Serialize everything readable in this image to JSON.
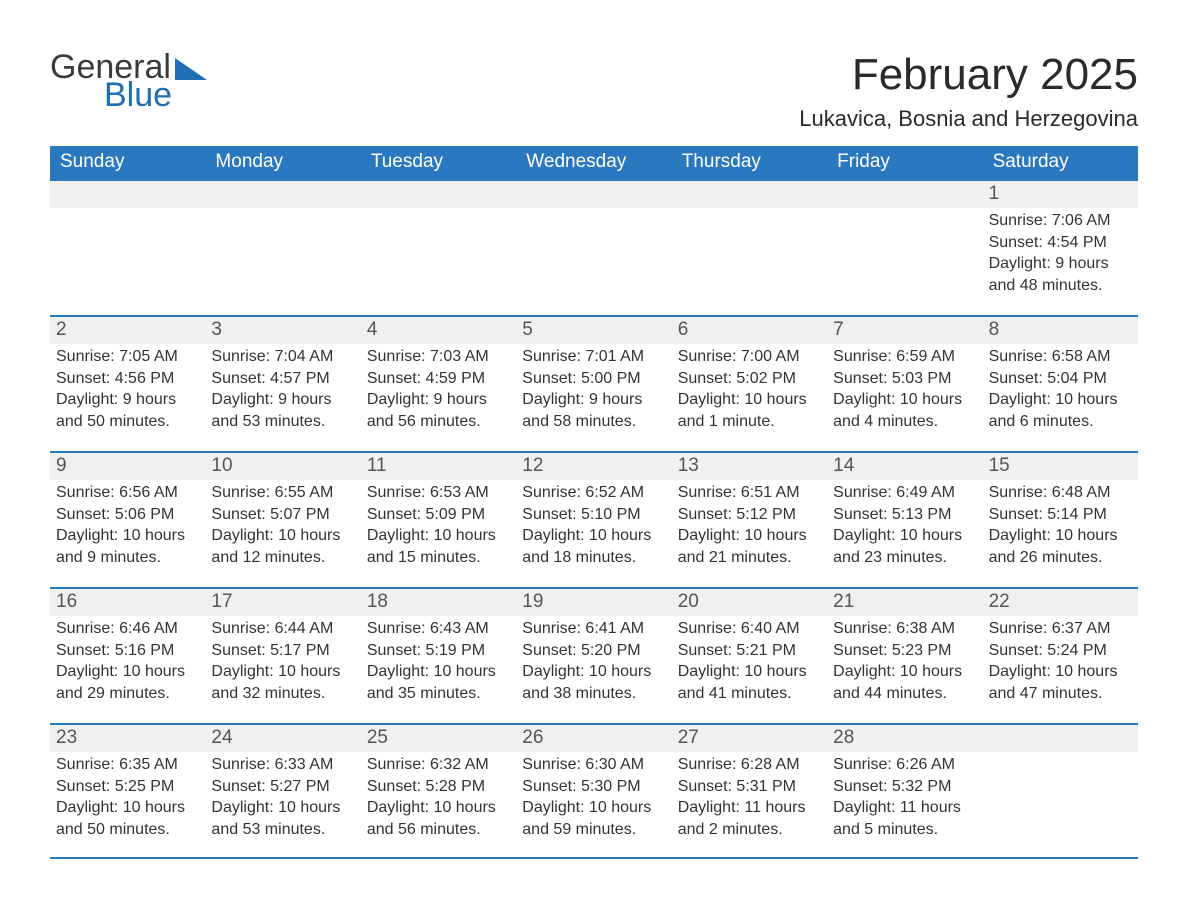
{
  "logo": {
    "word1": "General",
    "word2": "Blue"
  },
  "title": {
    "month": "February 2025",
    "location": "Lukavica, Bosnia and Herzegovina"
  },
  "calendar": {
    "day_headers": [
      "Sunday",
      "Monday",
      "Tuesday",
      "Wednesday",
      "Thursday",
      "Friday",
      "Saturday"
    ],
    "colors": {
      "header_bg": "#2a78c0",
      "header_text": "#ffffff",
      "rule": "#2a78c0",
      "daynum_bg": "#f0f0f0",
      "text": "#333333"
    },
    "weeks": [
      [
        null,
        null,
        null,
        null,
        null,
        null,
        {
          "n": "1",
          "sunrise": "Sunrise: 7:06 AM",
          "sunset": "Sunset: 4:54 PM",
          "day_a": "Daylight: 9 hours",
          "day_b": "and 48 minutes."
        }
      ],
      [
        {
          "n": "2",
          "sunrise": "Sunrise: 7:05 AM",
          "sunset": "Sunset: 4:56 PM",
          "day_a": "Daylight: 9 hours",
          "day_b": "and 50 minutes."
        },
        {
          "n": "3",
          "sunrise": "Sunrise: 7:04 AM",
          "sunset": "Sunset: 4:57 PM",
          "day_a": "Daylight: 9 hours",
          "day_b": "and 53 minutes."
        },
        {
          "n": "4",
          "sunrise": "Sunrise: 7:03 AM",
          "sunset": "Sunset: 4:59 PM",
          "day_a": "Daylight: 9 hours",
          "day_b": "and 56 minutes."
        },
        {
          "n": "5",
          "sunrise": "Sunrise: 7:01 AM",
          "sunset": "Sunset: 5:00 PM",
          "day_a": "Daylight: 9 hours",
          "day_b": "and 58 minutes."
        },
        {
          "n": "6",
          "sunrise": "Sunrise: 7:00 AM",
          "sunset": "Sunset: 5:02 PM",
          "day_a": "Daylight: 10 hours",
          "day_b": "and 1 minute."
        },
        {
          "n": "7",
          "sunrise": "Sunrise: 6:59 AM",
          "sunset": "Sunset: 5:03 PM",
          "day_a": "Daylight: 10 hours",
          "day_b": "and 4 minutes."
        },
        {
          "n": "8",
          "sunrise": "Sunrise: 6:58 AM",
          "sunset": "Sunset: 5:04 PM",
          "day_a": "Daylight: 10 hours",
          "day_b": "and 6 minutes."
        }
      ],
      [
        {
          "n": "9",
          "sunrise": "Sunrise: 6:56 AM",
          "sunset": "Sunset: 5:06 PM",
          "day_a": "Daylight: 10 hours",
          "day_b": "and 9 minutes."
        },
        {
          "n": "10",
          "sunrise": "Sunrise: 6:55 AM",
          "sunset": "Sunset: 5:07 PM",
          "day_a": "Daylight: 10 hours",
          "day_b": "and 12 minutes."
        },
        {
          "n": "11",
          "sunrise": "Sunrise: 6:53 AM",
          "sunset": "Sunset: 5:09 PM",
          "day_a": "Daylight: 10 hours",
          "day_b": "and 15 minutes."
        },
        {
          "n": "12",
          "sunrise": "Sunrise: 6:52 AM",
          "sunset": "Sunset: 5:10 PM",
          "day_a": "Daylight: 10 hours",
          "day_b": "and 18 minutes."
        },
        {
          "n": "13",
          "sunrise": "Sunrise: 6:51 AM",
          "sunset": "Sunset: 5:12 PM",
          "day_a": "Daylight: 10 hours",
          "day_b": "and 21 minutes."
        },
        {
          "n": "14",
          "sunrise": "Sunrise: 6:49 AM",
          "sunset": "Sunset: 5:13 PM",
          "day_a": "Daylight: 10 hours",
          "day_b": "and 23 minutes."
        },
        {
          "n": "15",
          "sunrise": "Sunrise: 6:48 AM",
          "sunset": "Sunset: 5:14 PM",
          "day_a": "Daylight: 10 hours",
          "day_b": "and 26 minutes."
        }
      ],
      [
        {
          "n": "16",
          "sunrise": "Sunrise: 6:46 AM",
          "sunset": "Sunset: 5:16 PM",
          "day_a": "Daylight: 10 hours",
          "day_b": "and 29 minutes."
        },
        {
          "n": "17",
          "sunrise": "Sunrise: 6:44 AM",
          "sunset": "Sunset: 5:17 PM",
          "day_a": "Daylight: 10 hours",
          "day_b": "and 32 minutes."
        },
        {
          "n": "18",
          "sunrise": "Sunrise: 6:43 AM",
          "sunset": "Sunset: 5:19 PM",
          "day_a": "Daylight: 10 hours",
          "day_b": "and 35 minutes."
        },
        {
          "n": "19",
          "sunrise": "Sunrise: 6:41 AM",
          "sunset": "Sunset: 5:20 PM",
          "day_a": "Daylight: 10 hours",
          "day_b": "and 38 minutes."
        },
        {
          "n": "20",
          "sunrise": "Sunrise: 6:40 AM",
          "sunset": "Sunset: 5:21 PM",
          "day_a": "Daylight: 10 hours",
          "day_b": "and 41 minutes."
        },
        {
          "n": "21",
          "sunrise": "Sunrise: 6:38 AM",
          "sunset": "Sunset: 5:23 PM",
          "day_a": "Daylight: 10 hours",
          "day_b": "and 44 minutes."
        },
        {
          "n": "22",
          "sunrise": "Sunrise: 6:37 AM",
          "sunset": "Sunset: 5:24 PM",
          "day_a": "Daylight: 10 hours",
          "day_b": "and 47 minutes."
        }
      ],
      [
        {
          "n": "23",
          "sunrise": "Sunrise: 6:35 AM",
          "sunset": "Sunset: 5:25 PM",
          "day_a": "Daylight: 10 hours",
          "day_b": "and 50 minutes."
        },
        {
          "n": "24",
          "sunrise": "Sunrise: 6:33 AM",
          "sunset": "Sunset: 5:27 PM",
          "day_a": "Daylight: 10 hours",
          "day_b": "and 53 minutes."
        },
        {
          "n": "25",
          "sunrise": "Sunrise: 6:32 AM",
          "sunset": "Sunset: 5:28 PM",
          "day_a": "Daylight: 10 hours",
          "day_b": "and 56 minutes."
        },
        {
          "n": "26",
          "sunrise": "Sunrise: 6:30 AM",
          "sunset": "Sunset: 5:30 PM",
          "day_a": "Daylight: 10 hours",
          "day_b": "and 59 minutes."
        },
        {
          "n": "27",
          "sunrise": "Sunrise: 6:28 AM",
          "sunset": "Sunset: 5:31 PM",
          "day_a": "Daylight: 11 hours",
          "day_b": "and 2 minutes."
        },
        {
          "n": "28",
          "sunrise": "Sunrise: 6:26 AM",
          "sunset": "Sunset: 5:32 PM",
          "day_a": "Daylight: 11 hours",
          "day_b": "and 5 minutes."
        },
        null
      ]
    ]
  }
}
